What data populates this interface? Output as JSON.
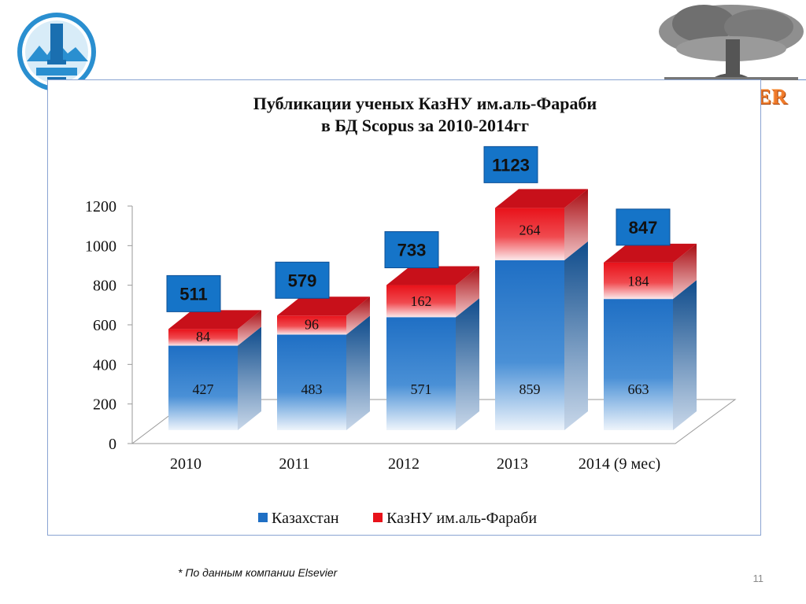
{
  "slide": {
    "footnote": "* По данным компании Elsevier",
    "page_number": "11",
    "elsevier_wordmark": "ELSEVIER"
  },
  "colors": {
    "kazakhstan": "#1f6fc4",
    "kaznu": "#e8121a",
    "total_box": "#1574c8"
  },
  "chart_data": {
    "type": "bar",
    "stacked": true,
    "three_d": true,
    "title": "Публикации ученых КазНУ им.аль-Фараби в БД Scopus за 2010-2014гг",
    "title_lines": [
      "Публикации ученых КазНУ им.аль-Фараби",
      "в БД Scopus за 2010-2014гг"
    ],
    "categories": [
      "2010",
      "2011",
      "2012",
      "2013",
      "2014 (9 мес)"
    ],
    "series": [
      {
        "name": "Казахстан",
        "values": [
          427,
          483,
          571,
          859,
          663
        ]
      },
      {
        "name": "КазНУ им.аль-Фараби",
        "values": [
          84,
          96,
          162,
          264,
          184
        ]
      }
    ],
    "totals": [
      511,
      579,
      733,
      1123,
      847
    ],
    "yticks": [
      "0",
      "200",
      "400",
      "600",
      "800",
      "1000",
      "1200"
    ],
    "ylim": [
      0,
      1200
    ],
    "xlabel": "",
    "ylabel": "",
    "legend_position": "bottom",
    "grid": false
  }
}
